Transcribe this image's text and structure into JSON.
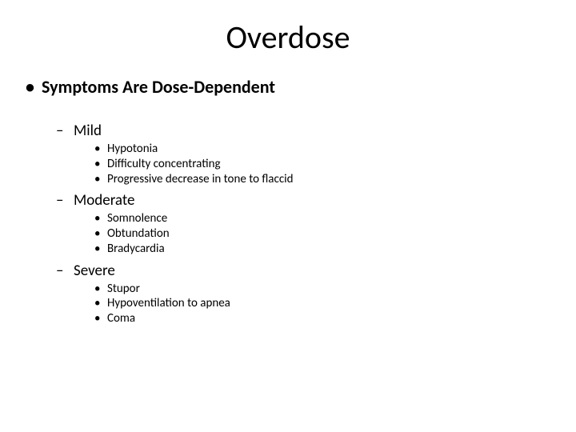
{
  "title": "Overdose",
  "heading": "Symptoms Are Dose-Dependent",
  "groups": [
    {
      "label": "Mild",
      "items": [
        "Hypotonia",
        "Difficulty concentrating",
        "Progressive decrease in tone to flaccid"
      ]
    },
    {
      "label": "Moderate",
      "items": [
        "Somnolence",
        "Obtundation",
        "Bradycardia"
      ]
    },
    {
      "label": "Severe",
      "items": [
        "Stupor",
        "Hypoventilation to apnea",
        "Coma"
      ]
    }
  ],
  "styling": {
    "background_color": "#ffffff",
    "text_color": "#000000",
    "title_fontsize": 40,
    "level1_fontsize": 22,
    "level1_fontweight": 700,
    "level2_fontsize": 19,
    "level3_fontsize": 15,
    "slide_width": 720,
    "slide_height": 540,
    "bullets": {
      "level1": "•",
      "level2": "–",
      "level3": "•"
    }
  }
}
